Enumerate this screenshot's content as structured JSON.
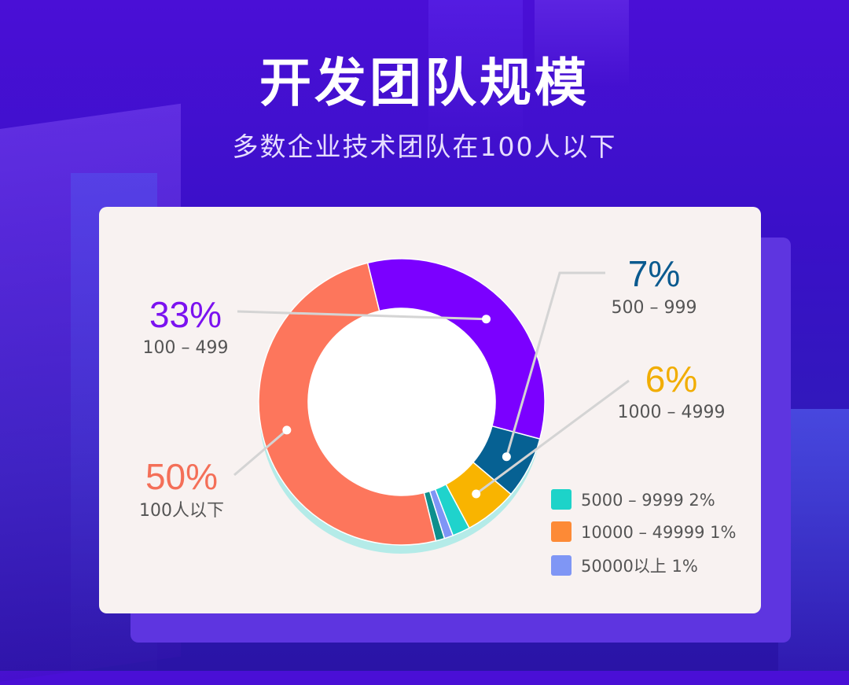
{
  "header": {
    "title": "开发团队规模",
    "subtitle": "多数企业技术团队在100人以下"
  },
  "chart_data": {
    "type": "pie",
    "title": "开发团队规模",
    "subtitle": "多数企业技术团队在100人以下",
    "start_angle_deg": 256.2,
    "series": [
      {
        "name": "100–499",
        "value": 33,
        "pct_label": "33%",
        "range_label": "100 – 499",
        "color": "#7b00ff",
        "text_color": "#7b12f0"
      },
      {
        "name": "500–999",
        "value": 7,
        "pct_label": "7%",
        "range_label": "500 – 999",
        "color": "#066193",
        "text_color": "#0a5a8f"
      },
      {
        "name": "1000–4999",
        "value": 6,
        "pct_label": "6%",
        "range_label": "1000 – 4999",
        "color": "#f9b400",
        "text_color": "#f1ad00"
      },
      {
        "name": "5000–9999",
        "value": 2,
        "pct_label": "2%",
        "range_label": "5000 – 9999",
        "color": "#1fd3cc",
        "text_color": "#555555"
      },
      {
        "name": "10000–49999",
        "value": 1,
        "pct_label": "1%",
        "range_label": "10000 – 49999",
        "color": "#7f95f6",
        "text_color": "#555555"
      },
      {
        "name": "50000以上",
        "value": 1,
        "pct_label": "1%",
        "range_label": "50000以上",
        "color": "#0e8f8c",
        "text_color": "#555555"
      },
      {
        "name": "100人以下",
        "value": 50,
        "pct_label": "50%",
        "range_label": "100人以下",
        "color": "#fd765c",
        "text_color": "#f46f58"
      }
    ],
    "legend": {
      "placement": "bottom-right",
      "items": [
        {
          "label": "5000 – 9999  2%",
          "color": "#1dd3c9"
        },
        {
          "label": "10000 – 49999  1%",
          "color": "#fd8a36"
        },
        {
          "label": "50000以上  1%",
          "color": "#7f96f5"
        }
      ]
    }
  }
}
